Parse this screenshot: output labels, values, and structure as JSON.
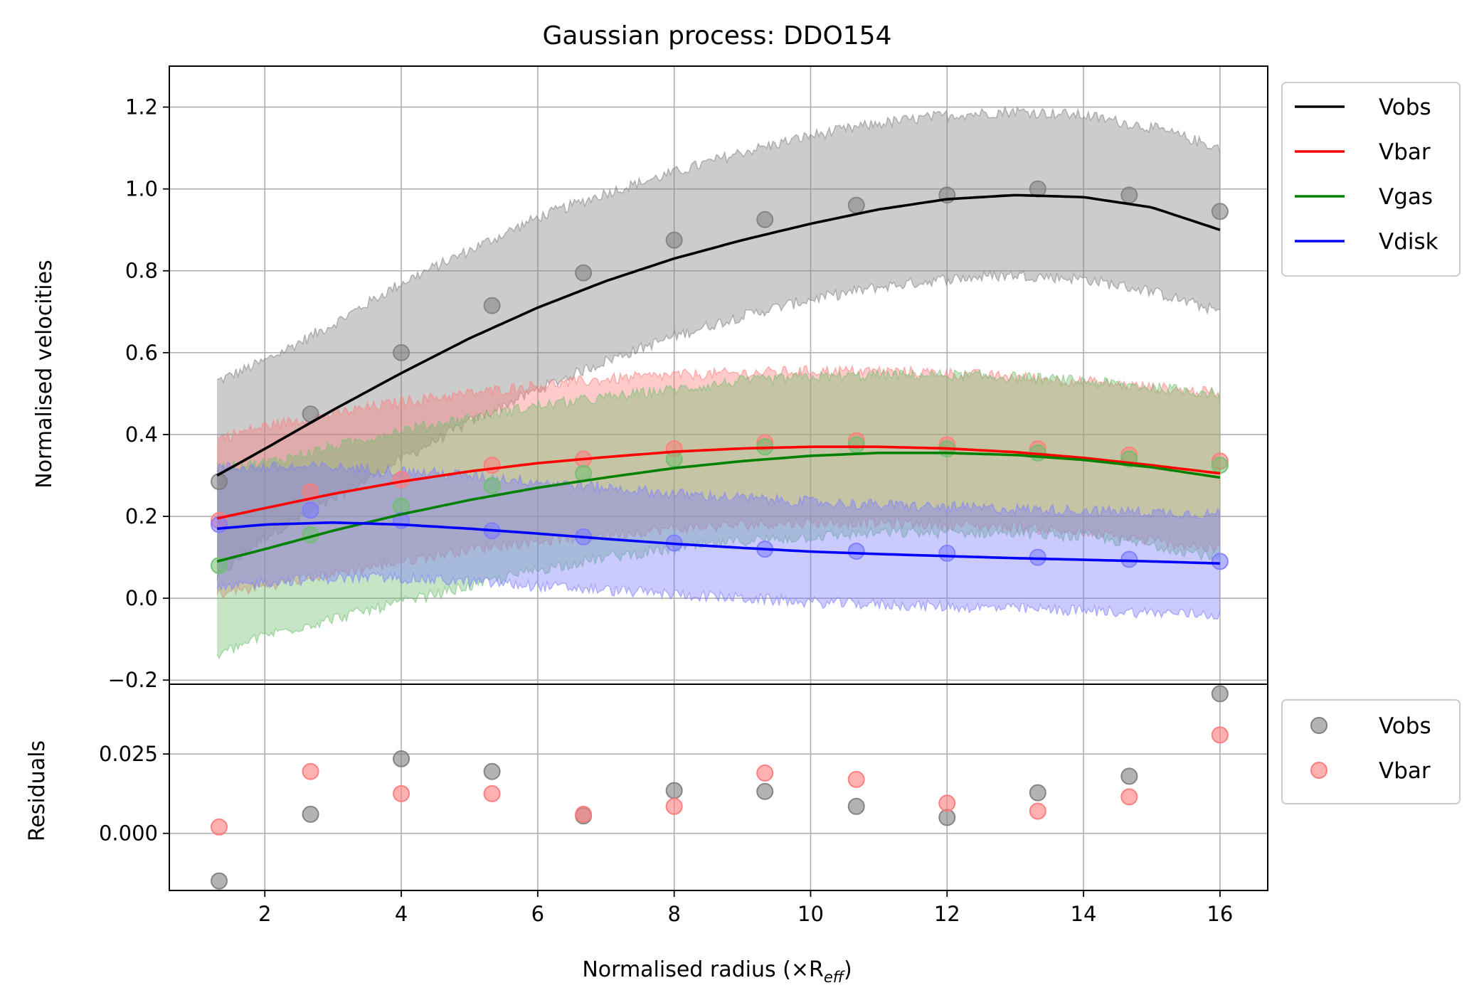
{
  "chart_data": {
    "type": "line",
    "title": "Gaussian process: DDO154",
    "xlabel": "Normalised radius (×R",
    "xlabel_sub": "eff",
    "xlabel_close": ")",
    "xlim": [
      0.6,
      16.7
    ],
    "x_ticks": [
      2,
      4,
      6,
      8,
      10,
      12,
      14,
      16
    ],
    "x_tick_labels": [
      "2",
      "4",
      "6",
      "8",
      "10",
      "12",
      "14",
      "16"
    ],
    "top_panel": {
      "ylabel": "Normalised velocities",
      "ylim": [
        -0.21,
        1.3
      ],
      "y_ticks": [
        -0.2,
        0.0,
        0.2,
        0.4,
        0.6,
        0.8,
        1.0,
        1.2
      ],
      "y_tick_labels": [
        "−0.2",
        "0.0",
        "0.2",
        "0.4",
        "0.6",
        "0.8",
        "1.0",
        "1.2"
      ],
      "grid": true,
      "legend_position": "outside-top-right",
      "series": [
        {
          "name": "Vobs",
          "color": "#000000",
          "band_color": "#808080",
          "points_x": [
            1.33,
            2.67,
            4.0,
            5.33,
            6.67,
            8.0,
            9.33,
            10.67,
            12.0,
            13.33,
            14.67,
            16.0
          ],
          "points_y": [
            0.285,
            0.45,
            0.6,
            0.715,
            0.795,
            0.875,
            0.925,
            0.96,
            0.985,
            1.0,
            0.985,
            0.945
          ],
          "curve_x": [
            1.3,
            2,
            3,
            4,
            5,
            6,
            7,
            8,
            9,
            10,
            11,
            12,
            13,
            14,
            15,
            16
          ],
          "curve_y": [
            0.3,
            0.365,
            0.46,
            0.55,
            0.635,
            0.71,
            0.775,
            0.83,
            0.875,
            0.915,
            0.95,
            0.975,
            0.985,
            0.98,
            0.955,
            0.9
          ],
          "band_x": [
            1.3,
            2,
            3,
            4,
            5,
            6,
            7,
            8,
            9,
            10,
            11,
            12,
            13,
            14,
            15,
            16
          ],
          "band_upper": [
            0.53,
            0.58,
            0.67,
            0.77,
            0.85,
            0.93,
            0.99,
            1.04,
            1.09,
            1.13,
            1.16,
            1.18,
            1.19,
            1.18,
            1.15,
            1.1
          ],
          "band_lower": [
            0.05,
            0.15,
            0.24,
            0.34,
            0.43,
            0.51,
            0.58,
            0.64,
            0.69,
            0.73,
            0.76,
            0.78,
            0.79,
            0.78,
            0.75,
            0.7
          ]
        },
        {
          "name": "Vbar",
          "color": "#ff0000",
          "band_color": "#ff7b7b",
          "points_x": [
            1.33,
            2.67,
            4.0,
            5.33,
            6.67,
            8.0,
            9.33,
            10.67,
            12.0,
            13.33,
            14.67,
            16.0
          ],
          "points_y": [
            0.19,
            0.26,
            0.29,
            0.325,
            0.34,
            0.365,
            0.38,
            0.385,
            0.375,
            0.365,
            0.35,
            0.335
          ],
          "curve_x": [
            1.3,
            2,
            3,
            4,
            5,
            6,
            7,
            8,
            9,
            10,
            11,
            12,
            13,
            14,
            15,
            16
          ],
          "curve_y": [
            0.195,
            0.22,
            0.255,
            0.285,
            0.31,
            0.33,
            0.345,
            0.358,
            0.366,
            0.37,
            0.37,
            0.366,
            0.357,
            0.343,
            0.325,
            0.305
          ],
          "band_x": [
            1.3,
            2,
            3,
            4,
            5,
            6,
            7,
            8,
            9,
            10,
            11,
            12,
            13,
            14,
            15,
            16
          ],
          "band_upper": [
            0.39,
            0.42,
            0.45,
            0.48,
            0.5,
            0.52,
            0.535,
            0.545,
            0.55,
            0.555,
            0.555,
            0.55,
            0.54,
            0.53,
            0.515,
            0.5
          ],
          "band_lower": [
            0.01,
            0.03,
            0.06,
            0.09,
            0.12,
            0.14,
            0.155,
            0.17,
            0.18,
            0.185,
            0.185,
            0.18,
            0.175,
            0.16,
            0.14,
            0.12
          ]
        },
        {
          "name": "Vgas",
          "color": "#008000",
          "band_color": "#6fbf6f",
          "points_x": [
            1.33,
            2.67,
            4.0,
            5.33,
            6.67,
            8.0,
            9.33,
            10.67,
            12.0,
            13.33,
            14.67,
            16.0
          ],
          "points_y": [
            0.08,
            0.155,
            0.225,
            0.275,
            0.305,
            0.34,
            0.37,
            0.375,
            0.365,
            0.355,
            0.34,
            0.325
          ],
          "curve_x": [
            1.3,
            2,
            3,
            4,
            5,
            6,
            7,
            8,
            9,
            10,
            11,
            12,
            13,
            14,
            15,
            16
          ],
          "curve_y": [
            0.09,
            0.12,
            0.165,
            0.205,
            0.24,
            0.27,
            0.295,
            0.318,
            0.335,
            0.348,
            0.355,
            0.355,
            0.35,
            0.338,
            0.32,
            0.295
          ],
          "band_x": [
            1.3,
            2,
            3,
            4,
            5,
            6,
            7,
            8,
            9,
            10,
            11,
            12,
            13,
            14,
            15,
            16
          ],
          "band_upper": [
            0.32,
            0.33,
            0.37,
            0.41,
            0.44,
            0.47,
            0.49,
            0.51,
            0.53,
            0.54,
            0.545,
            0.545,
            0.54,
            0.53,
            0.515,
            0.5
          ],
          "band_lower": [
            -0.14,
            -0.09,
            -0.05,
            -0.01,
            0.03,
            0.07,
            0.1,
            0.12,
            0.14,
            0.15,
            0.16,
            0.16,
            0.16,
            0.15,
            0.13,
            0.1
          ]
        },
        {
          "name": "Vdisk",
          "color": "#0000ff",
          "band_color": "#7b7bff",
          "points_x": [
            1.33,
            2.67,
            4.0,
            5.33,
            6.67,
            8.0,
            9.33,
            10.67,
            12.0,
            13.33,
            14.67,
            16.0
          ],
          "points_y": [
            0.18,
            0.215,
            0.19,
            0.165,
            0.15,
            0.135,
            0.12,
            0.115,
            0.11,
            0.1,
            0.095,
            0.09
          ],
          "curve_x": [
            1.3,
            2,
            3,
            4,
            5,
            6,
            7,
            8,
            9,
            10,
            11,
            12,
            13,
            14,
            15,
            16
          ],
          "curve_y": [
            0.17,
            0.18,
            0.185,
            0.18,
            0.17,
            0.158,
            0.145,
            0.133,
            0.123,
            0.114,
            0.108,
            0.103,
            0.098,
            0.094,
            0.09,
            0.085
          ],
          "band_x": [
            1.3,
            2,
            3,
            4,
            5,
            6,
            7,
            8,
            9,
            10,
            11,
            12,
            13,
            14,
            15,
            16
          ],
          "band_upper": [
            0.32,
            0.32,
            0.32,
            0.31,
            0.3,
            0.285,
            0.27,
            0.255,
            0.245,
            0.235,
            0.228,
            0.222,
            0.218,
            0.214,
            0.21,
            0.205
          ],
          "band_lower": [
            0.02,
            0.04,
            0.05,
            0.05,
            0.04,
            0.03,
            0.02,
            0.01,
            0.0,
            -0.01,
            -0.015,
            -0.02,
            -0.025,
            -0.03,
            -0.035,
            -0.04
          ]
        }
      ]
    },
    "bottom_panel": {
      "ylabel": "Residuals",
      "ylim": [
        -0.018,
        0.047
      ],
      "y_ticks": [
        0.0,
        0.025
      ],
      "y_tick_labels": [
        "0.000",
        "0.025"
      ],
      "grid": true,
      "legend_position": "outside-right",
      "series": [
        {
          "name": "Vobs",
          "color": "#808080",
          "x": [
            1.33,
            2.67,
            4.0,
            5.33,
            6.67,
            8.0,
            9.33,
            10.67,
            12.0,
            13.33,
            14.67,
            16.0
          ],
          "y": [
            -0.015,
            0.006,
            0.0235,
            0.0195,
            0.0055,
            0.0135,
            0.0132,
            0.0085,
            0.005,
            0.0128,
            0.018,
            0.044
          ]
        },
        {
          "name": "Vbar",
          "color": "#ff7b7b",
          "x": [
            1.33,
            2.67,
            4.0,
            5.33,
            6.67,
            8.0,
            9.33,
            10.67,
            12.0,
            13.33,
            14.67,
            16.0
          ],
          "y": [
            0.002,
            0.0195,
            0.0125,
            0.0125,
            0.006,
            0.0085,
            0.019,
            0.017,
            0.0095,
            0.007,
            0.0115,
            0.031
          ]
        }
      ]
    }
  }
}
